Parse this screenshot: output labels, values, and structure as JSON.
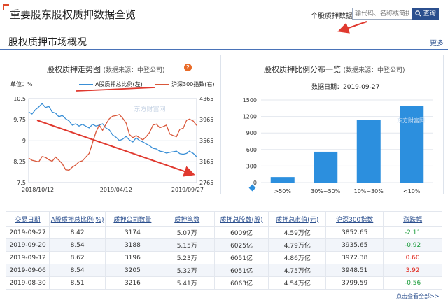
{
  "header": {
    "title": "重要股东股权质押数据全览",
    "search_label": "个股质押数据：",
    "search_placeholder": "输代码、名称或简拼",
    "search_button": "查询"
  },
  "section": {
    "title": "股权质押市场概况",
    "more": "更多"
  },
  "trend_panel": {
    "title": "股权质押走势图",
    "source": "(数据来源：中登公司)",
    "help": "?",
    "unit_label": "单位：%",
    "legend_a": "A股质押总比例(左)",
    "legend_b": "沪深300指数(右)"
  },
  "dist_panel": {
    "title": "股权质押比例分布一览",
    "source": "(数据来源：中登公司)",
    "date_label": "数据日期：2019-09-27"
  },
  "watermark_text": "东方财富网",
  "chart_data": [
    {
      "type": "line",
      "title": "股权质押走势图",
      "ylabel": "单位：%",
      "y_left_ticks": [
        "10.5",
        "9.75",
        "9",
        "8.25",
        "7.5"
      ],
      "ylim_left": [
        7.5,
        10.5
      ],
      "y_right_ticks": [
        "4365",
        "3965",
        "3565",
        "3165",
        "2765"
      ],
      "ylim_right": [
        2765,
        4365
      ],
      "x_ticks": [
        "2018/10/12",
        "2019/04/12",
        "2019/09/27"
      ],
      "x_range": [
        "2018-10-12",
        "2019-09-27"
      ],
      "colors": {
        "a_share": "#3a8fd6",
        "hs300": "#d9573a",
        "annotation": "#e0392f"
      },
      "series": [
        {
          "name": "A股质押总比例(左)",
          "axis": "left",
          "points": [
            [
              "2018-10-12",
              10.02
            ],
            [
              "2018-10-19",
              9.95
            ],
            [
              "2018-10-26",
              10.1
            ],
            [
              "2018-11-02",
              10.2
            ],
            [
              "2018-11-09",
              10.32
            ],
            [
              "2018-11-16",
              10.18
            ],
            [
              "2018-11-23",
              10.22
            ],
            [
              "2018-11-30",
              10.02
            ],
            [
              "2018-12-07",
              9.98
            ],
            [
              "2018-12-14",
              9.85
            ],
            [
              "2018-12-21",
              9.9
            ],
            [
              "2018-12-28",
              9.78
            ],
            [
              "2019-01-04",
              9.7
            ],
            [
              "2019-01-11",
              9.55
            ],
            [
              "2019-01-18",
              9.6
            ],
            [
              "2019-01-25",
              9.52
            ],
            [
              "2019-02-01",
              9.58
            ],
            [
              "2019-02-15",
              9.45
            ],
            [
              "2019-02-22",
              9.58
            ],
            [
              "2019-03-01",
              9.52
            ],
            [
              "2019-03-08",
              9.55
            ],
            [
              "2019-03-15",
              9.6
            ],
            [
              "2019-03-22",
              9.45
            ],
            [
              "2019-03-29",
              9.38
            ],
            [
              "2019-04-05",
              9.2
            ],
            [
              "2019-04-12",
              9.12
            ],
            [
              "2019-04-19",
              9.0
            ],
            [
              "2019-04-26",
              9.05
            ],
            [
              "2019-05-03",
              9.15
            ],
            [
              "2019-05-10",
              9.02
            ],
            [
              "2019-05-17",
              8.95
            ],
            [
              "2019-05-24",
              9.1
            ],
            [
              "2019-05-31",
              9.0
            ],
            [
              "2019-06-07",
              8.95
            ],
            [
              "2019-06-14",
              8.88
            ],
            [
              "2019-06-21",
              8.82
            ],
            [
              "2019-06-28",
              8.72
            ],
            [
              "2019-07-05",
              8.7
            ],
            [
              "2019-07-12",
              8.62
            ],
            [
              "2019-07-19",
              8.6
            ],
            [
              "2019-07-26",
              8.55
            ],
            [
              "2019-08-02",
              8.58
            ],
            [
              "2019-08-09",
              8.6
            ],
            [
              "2019-08-16",
              8.62
            ],
            [
              "2019-08-23",
              8.53
            ],
            [
              "2019-08-30",
              8.51
            ],
            [
              "2019-09-06",
              8.54
            ],
            [
              "2019-09-12",
              8.62
            ],
            [
              "2019-09-20",
              8.54
            ],
            [
              "2019-09-27",
              8.42
            ]
          ]
        },
        {
          "name": "沪深300指数(右)",
          "axis": "right",
          "points": [
            [
              "2018-10-12",
              3230
            ],
            [
              "2018-10-19",
              3190
            ],
            [
              "2018-10-26",
              3175
            ],
            [
              "2018-11-02",
              3160
            ],
            [
              "2018-11-09",
              3260
            ],
            [
              "2018-11-16",
              3245
            ],
            [
              "2018-11-23",
              3200
            ],
            [
              "2018-11-30",
              3170
            ],
            [
              "2018-12-07",
              3250
            ],
            [
              "2018-12-14",
              3190
            ],
            [
              "2018-12-21",
              3125
            ],
            [
              "2018-12-28",
              3010
            ],
            [
              "2019-01-04",
              3000
            ],
            [
              "2019-01-11",
              3060
            ],
            [
              "2019-01-18",
              3100
            ],
            [
              "2019-01-25",
              3160
            ],
            [
              "2019-02-01",
              3180
            ],
            [
              "2019-02-15",
              3320
            ],
            [
              "2019-02-22",
              3520
            ],
            [
              "2019-03-01",
              3720
            ],
            [
              "2019-03-08",
              3860
            ],
            [
              "2019-03-15",
              3760
            ],
            [
              "2019-03-22",
              3880
            ],
            [
              "2019-03-29",
              3980
            ],
            [
              "2019-04-05",
              4030
            ],
            [
              "2019-04-12",
              4040
            ],
            [
              "2019-04-19",
              4060
            ],
            [
              "2019-04-26",
              3990
            ],
            [
              "2019-05-03",
              3900
            ],
            [
              "2019-05-10",
              3680
            ],
            [
              "2019-05-17",
              3620
            ],
            [
              "2019-05-24",
              3660
            ],
            [
              "2019-05-31",
              3620
            ],
            [
              "2019-06-07",
              3580
            ],
            [
              "2019-06-14",
              3640
            ],
            [
              "2019-06-21",
              3720
            ],
            [
              "2019-06-28",
              3860
            ],
            [
              "2019-07-05",
              3880
            ],
            [
              "2019-07-12",
              3810
            ],
            [
              "2019-07-19",
              3830
            ],
            [
              "2019-07-26",
              3860
            ],
            [
              "2019-08-02",
              3690
            ],
            [
              "2019-08-09",
              3660
            ],
            [
              "2019-08-16",
              3640
            ],
            [
              "2019-08-23",
              3780
            ],
            [
              "2019-08-30",
              3799.59
            ],
            [
              "2019-09-06",
              3948.51
            ],
            [
              "2019-09-12",
              3972.38
            ],
            [
              "2019-09-20",
              3935.65
            ],
            [
              "2019-09-27",
              3852.65
            ]
          ]
        }
      ],
      "annotation": "red downward trend arrow"
    },
    {
      "type": "bar",
      "title": "股权质押比例分布一览",
      "categories": [
        ">50%",
        "30%~50%",
        "10%~30%",
        "<10%"
      ],
      "values": [
        100,
        560,
        1140,
        1390
      ],
      "ylim": [
        0,
        1500
      ],
      "y_ticks": [
        "0",
        "300",
        "600",
        "900",
        "1200",
        "1500"
      ],
      "bar_color": "#2c8fde"
    }
  ],
  "table": {
    "headers": [
      "交易日期",
      "A股质押总比例(%)",
      "质押公司数量",
      "质押笔数",
      "质押总股数(股)",
      "质押总市值(元)",
      "沪深300指数",
      "涨跌幅"
    ],
    "rows": [
      [
        "2019-09-27",
        "8.42",
        "3174",
        "5.07万",
        "6009亿",
        "4.59万亿",
        "3852.65",
        "-2.11"
      ],
      [
        "2019-09-20",
        "8.54",
        "3188",
        "5.15万",
        "6025亿",
        "4.79万亿",
        "3935.65",
        "-0.92"
      ],
      [
        "2019-09-12",
        "8.62",
        "3196",
        "5.23万",
        "6051亿",
        "4.86万亿",
        "3972.38",
        "0.60"
      ],
      [
        "2019-09-06",
        "8.54",
        "3205",
        "5.32万",
        "6051亿",
        "4.75万亿",
        "3948.51",
        "3.92"
      ],
      [
        "2019-08-30",
        "8.51",
        "3216",
        "5.41万",
        "6063亿",
        "4.54万亿",
        "3799.59",
        "-0.56"
      ]
    ],
    "change_colors": {
      "up": "#e0261c",
      "down": "#1a9c3a"
    }
  },
  "footer": {
    "more": "点击查看全部>>"
  }
}
